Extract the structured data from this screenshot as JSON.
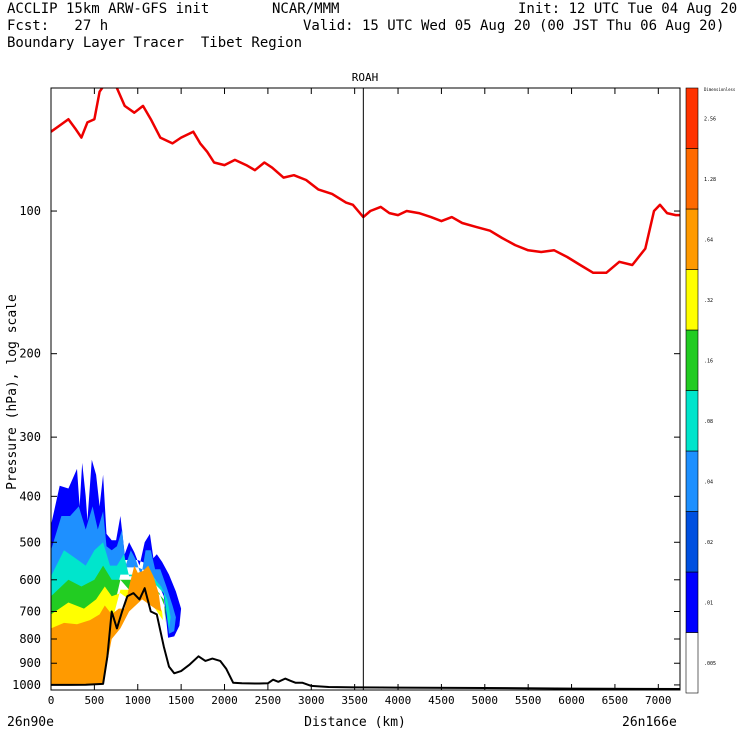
{
  "header": {
    "model": "ACCLIP 15km ARW-GFS init",
    "org": "NCAR/MMM",
    "init": "Init: 12 UTC Tue 04 Aug 20",
    "fcst": "Fcst:   27 h",
    "valid": "Valid: 15 UTC Wed 05 Aug 20 (00 JST Thu 06 Aug 20)",
    "product": "Boundary Layer Tracer  Tibet Region"
  },
  "chart_data": {
    "type": "area",
    "title": "ROAH",
    "xlabel": "Distance (km)",
    "ylabel": "Pressure (hPa), log scale",
    "x_start_label": "26n90e",
    "x_end_label": "26n166e",
    "xlim": [
      0,
      7250
    ],
    "ylim": [
      1025,
      55
    ],
    "y_scale": "log",
    "x_ticks": [
      0,
      500,
      1000,
      1500,
      2000,
      2500,
      3000,
      3500,
      4000,
      4500,
      5000,
      5500,
      6000,
      6500,
      7000
    ],
    "y_ticks": [
      100,
      200,
      300,
      400,
      500,
      600,
      700,
      800,
      900,
      1000
    ],
    "marker_x_km": 3600,
    "colorbar": {
      "title": "Dimensionless",
      "labels": [
        ".005",
        ".01",
        ".02",
        ".04",
        ".08",
        ".16",
        ".32",
        ".64",
        "1.28",
        "2.56"
      ],
      "colors": [
        "#ffffff",
        "#0000ff",
        "#0050e0",
        "#1e90ff",
        "#00e5cc",
        "#22cc22",
        "#ffff00",
        "#ff9a00",
        "#ff6a00",
        "#ff3300"
      ]
    },
    "series": [
      {
        "role": "tropopause",
        "color": "#ee0000",
        "points": [
          [
            0,
            68
          ],
          [
            100,
            66
          ],
          [
            200,
            64
          ],
          [
            280,
            67
          ],
          [
            350,
            70
          ],
          [
            420,
            65
          ],
          [
            500,
            64
          ],
          [
            560,
            56
          ],
          [
            620,
            54
          ],
          [
            680,
            52
          ],
          [
            760,
            55
          ],
          [
            850,
            60
          ],
          [
            960,
            62
          ],
          [
            1060,
            60
          ],
          [
            1150,
            64
          ],
          [
            1260,
            70
          ],
          [
            1400,
            72
          ],
          [
            1500,
            70
          ],
          [
            1640,
            68
          ],
          [
            1720,
            72
          ],
          [
            1800,
            75
          ],
          [
            1880,
            79
          ],
          [
            2000,
            80
          ],
          [
            2120,
            78
          ],
          [
            2250,
            80
          ],
          [
            2350,
            82
          ],
          [
            2460,
            79
          ],
          [
            2550,
            81
          ],
          [
            2680,
            85
          ],
          [
            2800,
            84
          ],
          [
            2940,
            86
          ],
          [
            3080,
            90
          ],
          [
            3240,
            92
          ],
          [
            3400,
            96
          ],
          [
            3480,
            97
          ],
          [
            3600,
            103
          ],
          [
            3680,
            100
          ],
          [
            3800,
            98
          ],
          [
            3900,
            101
          ],
          [
            4000,
            102
          ],
          [
            4100,
            100
          ],
          [
            4240,
            101
          ],
          [
            4380,
            103
          ],
          [
            4500,
            105
          ],
          [
            4620,
            103
          ],
          [
            4740,
            106
          ],
          [
            4900,
            108
          ],
          [
            5060,
            110
          ],
          [
            5200,
            114
          ],
          [
            5350,
            118
          ],
          [
            5500,
            121
          ],
          [
            5650,
            122
          ],
          [
            5800,
            121
          ],
          [
            5950,
            125
          ],
          [
            6100,
            130
          ],
          [
            6250,
            135
          ],
          [
            6400,
            135
          ],
          [
            6550,
            128
          ],
          [
            6700,
            130
          ],
          [
            6850,
            120
          ],
          [
            6950,
            100
          ],
          [
            7020,
            97
          ],
          [
            7100,
            101
          ],
          [
            7200,
            102
          ],
          [
            7250,
            102
          ]
        ]
      },
      {
        "role": "terrain",
        "color": "#000000",
        "points": [
          [
            0,
            1000
          ],
          [
            200,
            1000
          ],
          [
            400,
            999
          ],
          [
            600,
            995
          ],
          [
            650,
            870
          ],
          [
            700,
            700
          ],
          [
            760,
            760
          ],
          [
            820,
            700
          ],
          [
            880,
            650
          ],
          [
            950,
            640
          ],
          [
            1020,
            660
          ],
          [
            1080,
            625
          ],
          [
            1150,
            700
          ],
          [
            1220,
            710
          ],
          [
            1300,
            830
          ],
          [
            1360,
            915
          ],
          [
            1420,
            945
          ],
          [
            1500,
            935
          ],
          [
            1600,
            905
          ],
          [
            1700,
            870
          ],
          [
            1780,
            890
          ],
          [
            1860,
            880
          ],
          [
            1950,
            890
          ],
          [
            2020,
            925
          ],
          [
            2100,
            990
          ],
          [
            2200,
            992
          ],
          [
            2400,
            993
          ],
          [
            2500,
            992
          ],
          [
            2560,
            975
          ],
          [
            2620,
            985
          ],
          [
            2700,
            970
          ],
          [
            2760,
            980
          ],
          [
            2820,
            990
          ],
          [
            2900,
            990
          ],
          [
            3000,
            1005
          ],
          [
            3200,
            1010
          ],
          [
            3500,
            1012
          ],
          [
            4000,
            1013
          ],
          [
            5000,
            1015
          ],
          [
            6000,
            1018
          ],
          [
            7250,
            1020
          ]
        ]
      }
    ],
    "tracer_layers": [
      {
        "class": "0.01-0.02",
        "color": "#0000ff",
        "points": [
          [
            0,
            460
          ],
          [
            100,
            380
          ],
          [
            200,
            385
          ],
          [
            300,
            350
          ],
          [
            330,
            420
          ],
          [
            360,
            340
          ],
          [
            400,
            400
          ],
          [
            420,
            450
          ],
          [
            470,
            335
          ],
          [
            520,
            360
          ],
          [
            560,
            420
          ],
          [
            600,
            360
          ],
          [
            640,
            480
          ],
          [
            700,
            495
          ],
          [
            750,
            495
          ],
          [
            800,
            440
          ],
          [
            850,
            530
          ],
          [
            900,
            500
          ],
          [
            960,
            525
          ],
          [
            1020,
            560
          ],
          [
            1080,
            500
          ],
          [
            1140,
            480
          ],
          [
            1180,
            540
          ],
          [
            1220,
            530
          ],
          [
            1280,
            550
          ],
          [
            1360,
            585
          ],
          [
            1440,
            635
          ],
          [
            1500,
            690
          ],
          [
            1480,
            750
          ],
          [
            1420,
            790
          ],
          [
            1350,
            795
          ],
          [
            1300,
            650
          ],
          [
            1150,
            560
          ],
          [
            1000,
            545
          ],
          [
            800,
            545
          ],
          [
            700,
            660
          ],
          [
            600,
            720
          ],
          [
            500,
            745
          ],
          [
            300,
            765
          ],
          [
            100,
            810
          ],
          [
            0,
            780
          ]
        ]
      },
      {
        "class": "0.02-0.04",
        "color": "#1e90ff",
        "points": [
          [
            0,
            520
          ],
          [
            120,
            440
          ],
          [
            220,
            440
          ],
          [
            320,
            420
          ],
          [
            400,
            470
          ],
          [
            480,
            420
          ],
          [
            540,
            470
          ],
          [
            600,
            430
          ],
          [
            640,
            510
          ],
          [
            700,
            520
          ],
          [
            760,
            510
          ],
          [
            820,
            470
          ],
          [
            860,
            560
          ],
          [
            920,
            520
          ],
          [
            980,
            545
          ],
          [
            1040,
            590
          ],
          [
            1090,
            520
          ],
          [
            1150,
            520
          ],
          [
            1200,
            570
          ],
          [
            1260,
            570
          ],
          [
            1330,
            620
          ],
          [
            1400,
            680
          ],
          [
            1440,
            720
          ],
          [
            1420,
            770
          ],
          [
            1360,
            780
          ],
          [
            1300,
            640
          ],
          [
            1150,
            580
          ],
          [
            1000,
            565
          ],
          [
            800,
            565
          ],
          [
            700,
            680
          ],
          [
            600,
            730
          ],
          [
            500,
            755
          ],
          [
            300,
            780
          ],
          [
            100,
            820
          ],
          [
            0,
            800
          ]
        ]
      },
      {
        "class": "0.04-0.08",
        "color": "#00e5cc",
        "points": [
          [
            0,
            590
          ],
          [
            150,
            520
          ],
          [
            280,
            540
          ],
          [
            400,
            560
          ],
          [
            500,
            520
          ],
          [
            600,
            500
          ],
          [
            680,
            560
          ],
          [
            760,
            560
          ],
          [
            840,
            530
          ],
          [
            900,
            590
          ],
          [
            980,
            590
          ],
          [
            1060,
            620
          ],
          [
            1120,
            560
          ],
          [
            1200,
            600
          ],
          [
            1270,
            620
          ],
          [
            1340,
            660
          ],
          [
            1380,
            720
          ],
          [
            1360,
            760
          ],
          [
            1300,
            640
          ],
          [
            1150,
            600
          ],
          [
            1000,
            585
          ],
          [
            800,
            585
          ],
          [
            700,
            700
          ],
          [
            600,
            740
          ],
          [
            500,
            760
          ],
          [
            300,
            790
          ],
          [
            100,
            830
          ],
          [
            0,
            820
          ]
        ]
      },
      {
        "class": "0.08-0.16",
        "color": "#22cc22",
        "points": [
          [
            0,
            650
          ],
          [
            200,
            600
          ],
          [
            350,
            620
          ],
          [
            500,
            600
          ],
          [
            600,
            560
          ],
          [
            700,
            600
          ],
          [
            800,
            600
          ],
          [
            900,
            630
          ],
          [
            1000,
            620
          ],
          [
            1080,
            650
          ],
          [
            1160,
            620
          ],
          [
            1250,
            640
          ],
          [
            1320,
            690
          ],
          [
            1320,
            740
          ],
          [
            1300,
            660
          ],
          [
            1150,
            615
          ],
          [
            1000,
            600
          ],
          [
            800,
            600
          ],
          [
            700,
            720
          ],
          [
            600,
            755
          ],
          [
            500,
            775
          ],
          [
            300,
            800
          ],
          [
            100,
            840
          ],
          [
            0,
            835
          ]
        ]
      },
      {
        "class": "0.16-0.32",
        "color": "#ffff00",
        "points": [
          [
            0,
            710
          ],
          [
            200,
            670
          ],
          [
            380,
            690
          ],
          [
            520,
            660
          ],
          [
            620,
            620
          ],
          [
            700,
            650
          ],
          [
            800,
            640
          ],
          [
            900,
            660
          ],
          [
            1000,
            640
          ],
          [
            1100,
            660
          ],
          [
            1200,
            650
          ],
          [
            1280,
            700
          ],
          [
            1290,
            730
          ],
          [
            1200,
            690
          ],
          [
            1000,
            630
          ],
          [
            800,
            630
          ],
          [
            700,
            740
          ],
          [
            600,
            770
          ],
          [
            500,
            790
          ],
          [
            300,
            815
          ],
          [
            100,
            850
          ],
          [
            0,
            850
          ]
        ]
      },
      {
        "class": "0.64-1.28",
        "color": "#ff9a00",
        "points": [
          [
            0,
            760
          ],
          [
            150,
            740
          ],
          [
            300,
            745
          ],
          [
            450,
            730
          ],
          [
            560,
            710
          ],
          [
            620,
            680
          ],
          [
            700,
            710
          ],
          [
            780,
            690
          ],
          [
            850,
            690
          ],
          [
            900,
            620
          ],
          [
            960,
            560
          ],
          [
            1000,
            580
          ],
          [
            1060,
            575
          ],
          [
            1120,
            560
          ],
          [
            1180,
            590
          ],
          [
            1240,
            640
          ],
          [
            1270,
            700
          ],
          [
            1200,
            690
          ],
          [
            1050,
            660
          ],
          [
            900,
            700
          ],
          [
            800,
            760
          ],
          [
            700,
            800
          ],
          [
            600,
            995
          ],
          [
            400,
            998
          ],
          [
            200,
            999
          ],
          [
            0,
            1000
          ]
        ]
      }
    ]
  }
}
